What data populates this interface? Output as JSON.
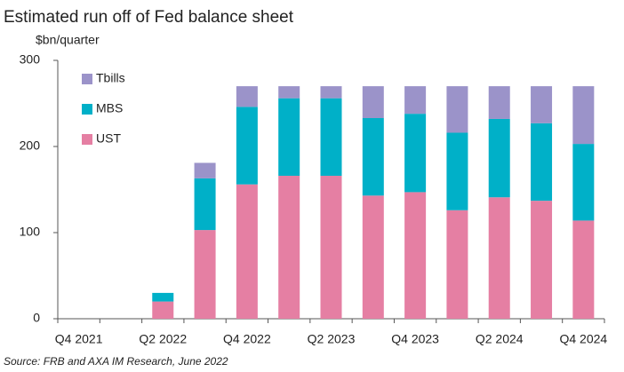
{
  "chart_data": {
    "type": "stacked-bar",
    "title": "Estimated run off of Fed balance sheet",
    "y_label": "$bn/quarter",
    "source": "Source: FRB and AXA IM Research, June 2022",
    "categories": [
      "Q4 2021",
      null,
      "Q2 2022",
      null,
      "Q4 2022",
      null,
      "Q2 2023",
      null,
      "Q4 2023",
      null,
      "Q2 2024",
      null,
      "Q4 2024"
    ],
    "series": [
      {
        "name": "UST",
        "color": "#e57fa3",
        "values": [
          0,
          0,
          20,
          103,
          156,
          166,
          166,
          143,
          147,
          126,
          141,
          137,
          114
        ]
      },
      {
        "name": "MBS",
        "color": "#00b0c8",
        "values": [
          0,
          0,
          10,
          60,
          90,
          90,
          90,
          90,
          91,
          90,
          91,
          90,
          89
        ]
      },
      {
        "name": "Tbills",
        "color": "#9b93c9",
        "values": [
          0,
          0,
          0,
          18,
          24,
          14,
          14,
          37,
          32,
          54,
          38,
          43,
          67
        ]
      }
    ],
    "ylim": [
      0,
      300
    ],
    "yticks": [
      0,
      100,
      200,
      300
    ],
    "legend": "top-left"
  }
}
